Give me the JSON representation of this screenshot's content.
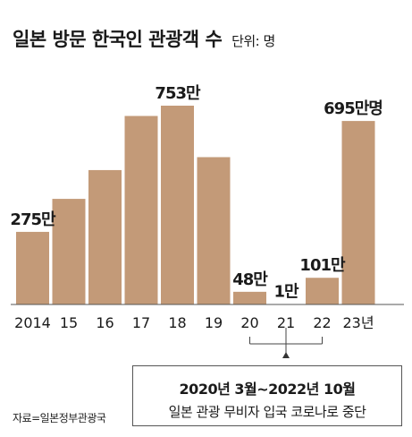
{
  "chart_data": {
    "type": "bar",
    "title": "일본 방문 한국인 관광객 수",
    "unit_label": "단위: 명",
    "categories": [
      "2014",
      "15",
      "16",
      "17",
      "18",
      "19",
      "20",
      "21",
      "22",
      "23년"
    ],
    "values": [
      275,
      400,
      509,
      714,
      753,
      558,
      48,
      1,
      101,
      695
    ],
    "value_unit": "만명",
    "data_labels": [
      {
        "index": 0,
        "text": "275만"
      },
      {
        "index": 4,
        "text": "753만"
      },
      {
        "index": 6,
        "text": "48만"
      },
      {
        "index": 7,
        "text": "1만"
      },
      {
        "index": 8,
        "text": "101만"
      },
      {
        "index": 9,
        "text": "695만명"
      }
    ],
    "ylim": [
      0,
      800
    ],
    "grid": false,
    "bar_color": "#c39a78",
    "annotation": {
      "bracket_categories": [
        "20",
        "21",
        "22"
      ],
      "line1": "2020년 3월~2022년 10월",
      "line2": "일본 관광 무비자 입국 코로나로 중단"
    },
    "source": "자료=일본정부관광국"
  }
}
